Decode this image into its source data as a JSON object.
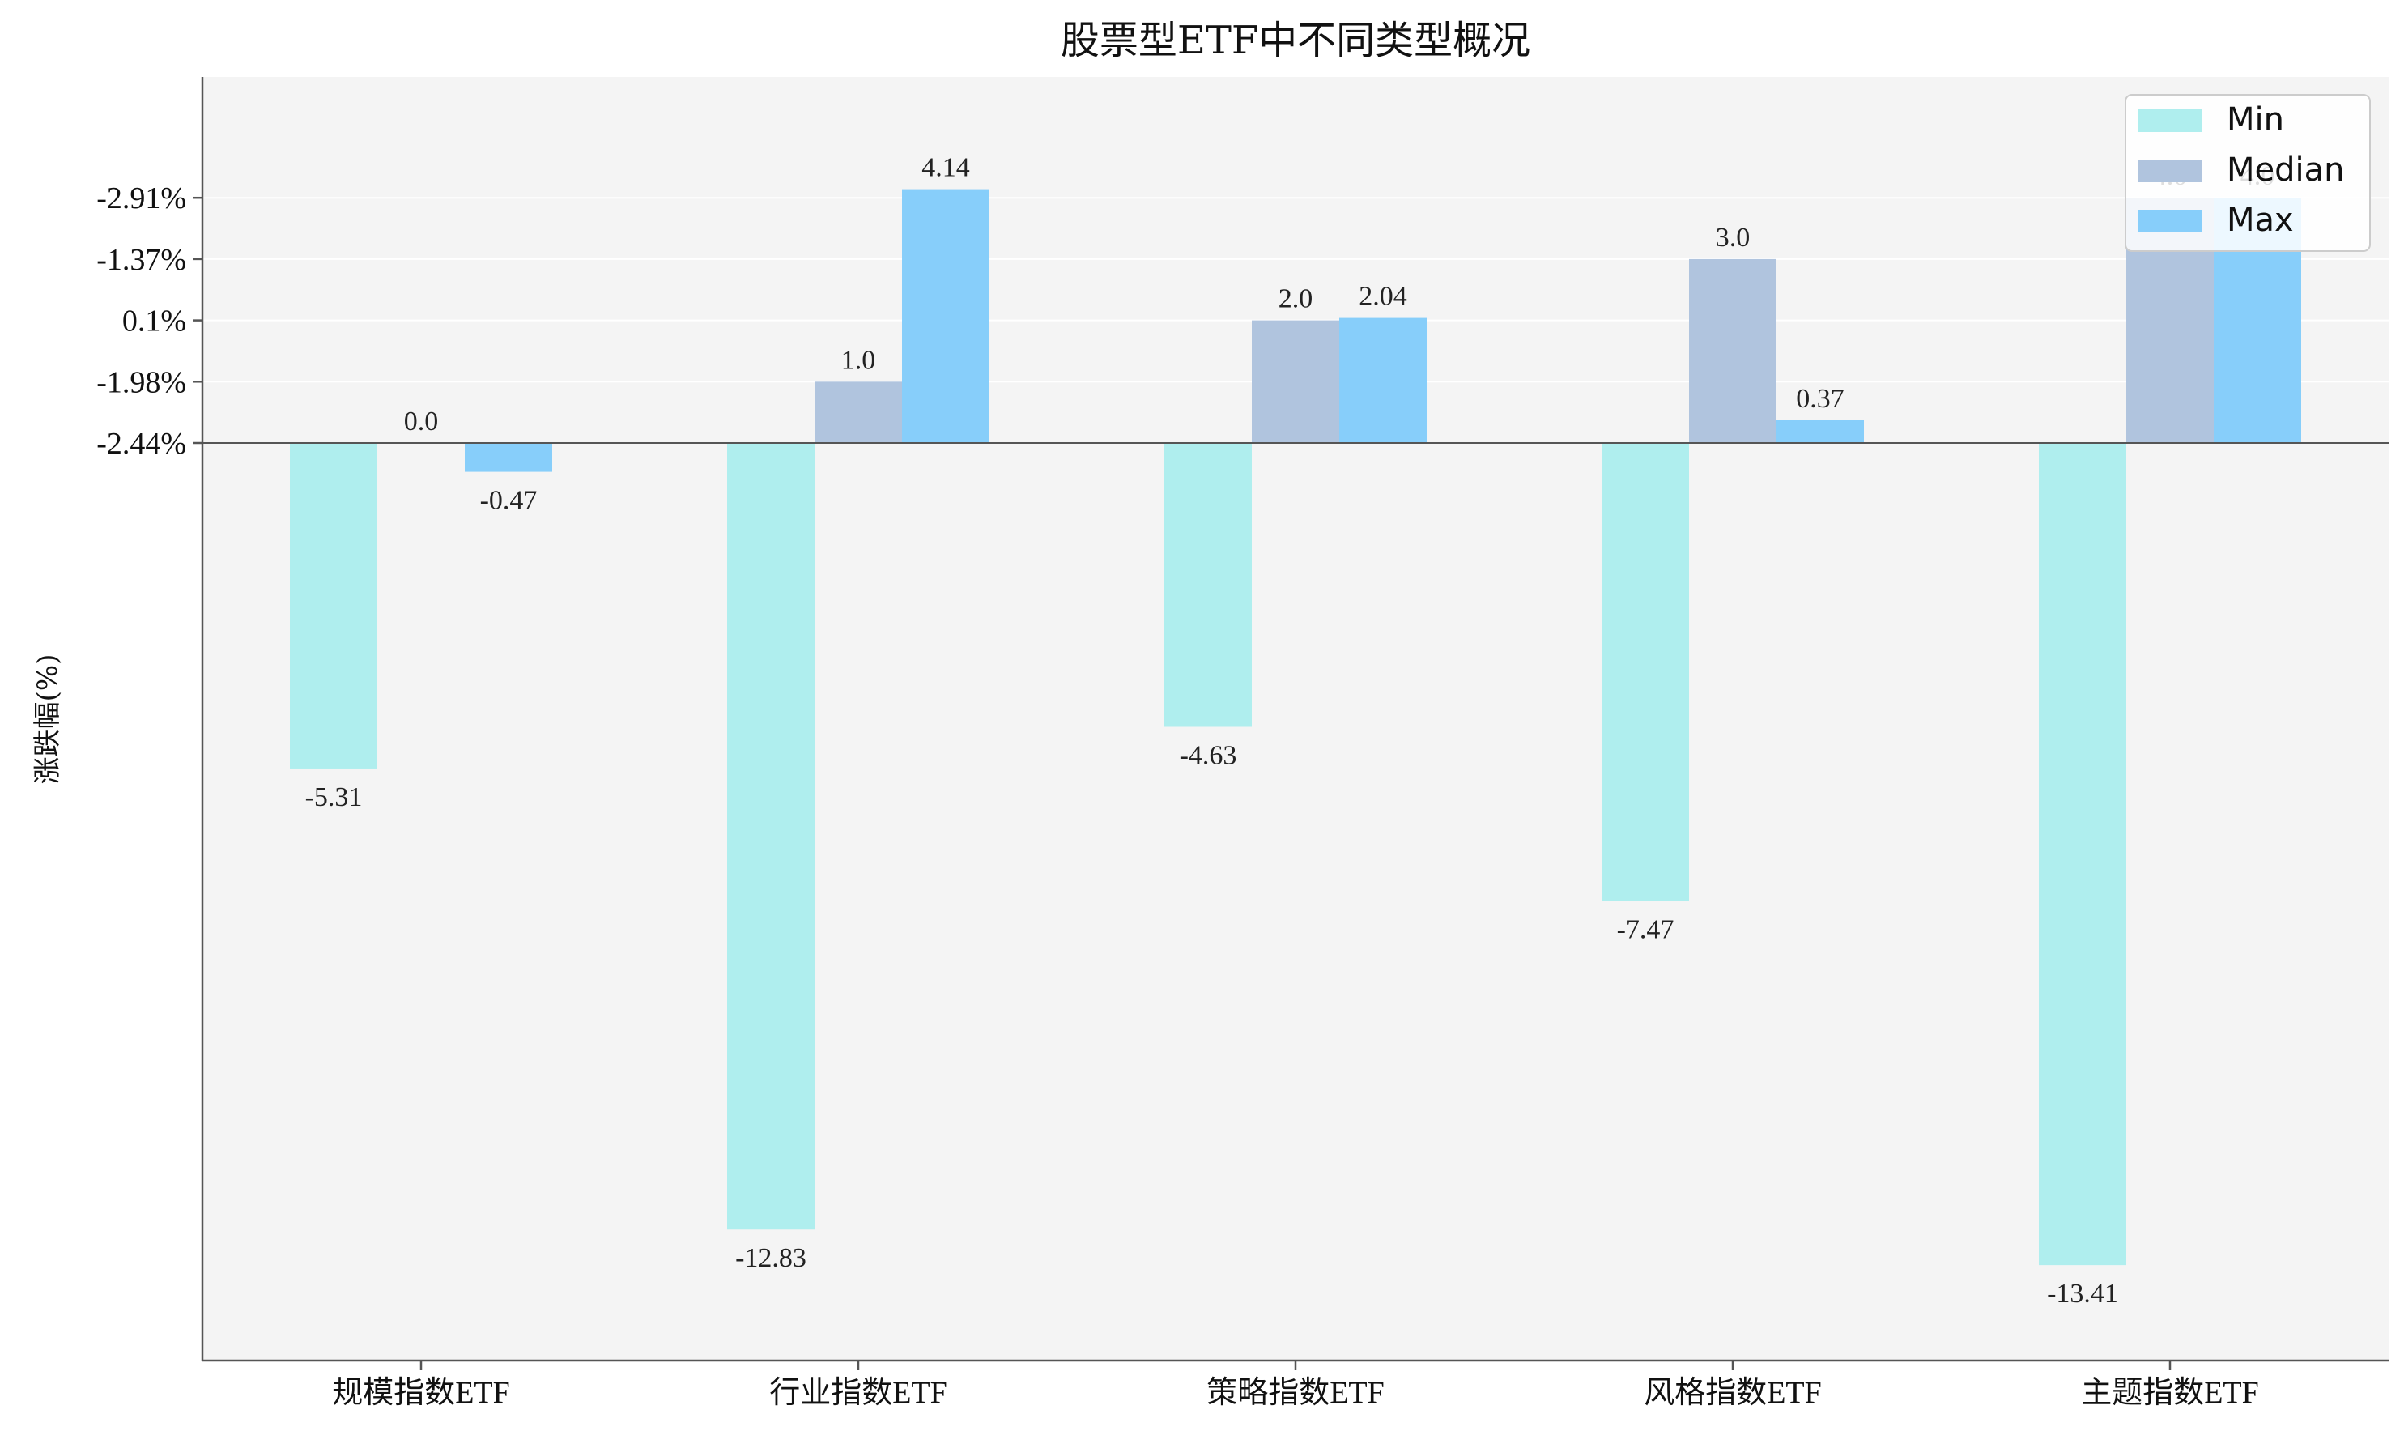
{
  "chart_data": {
    "type": "bar",
    "title": "股票型ETF中不同类型概况",
    "xlabel": "",
    "ylabel": "涨跌幅(%)",
    "categories": [
      "规模指数ETF",
      "行业指数ETF",
      "策略指数ETF",
      "风格指数ETF",
      "主题指数ETF"
    ],
    "series": [
      {
        "name": "Min",
        "color": "#afeeee",
        "values": [
          -5.31,
          -12.83,
          -4.63,
          -7.47,
          -13.41
        ],
        "labels": [
          "-5.31",
          "-12.83",
          "-4.63",
          "-7.47",
          "-13.41"
        ]
      },
      {
        "name": "Median",
        "color": "#b0c4de",
        "values": [
          0.0,
          1.0,
          2.0,
          3.0,
          4.0
        ],
        "labels": [
          "0.0",
          "1.0",
          "2.0",
          "3.0",
          "4.0"
        ]
      },
      {
        "name": "Max",
        "color": "#87cefa",
        "values": [
          -0.47,
          4.14,
          2.04,
          0.37,
          4.0
        ],
        "labels": [
          "-0.47",
          "4.14",
          "2.04",
          "0.37",
          "4.0"
        ]
      }
    ],
    "yticks": [
      {
        "value": 0.0,
        "label": "-2.44%"
      },
      {
        "value": 1.0,
        "label": "-1.98%"
      },
      {
        "value": 2.0,
        "label": "0.1%"
      },
      {
        "value": 3.0,
        "label": "-1.37%"
      },
      {
        "value": 4.0,
        "label": "-2.91%"
      }
    ],
    "ylim": [
      -15,
      6
    ],
    "grid": true,
    "legend": "top-right",
    "background": "#f4f4f4"
  }
}
